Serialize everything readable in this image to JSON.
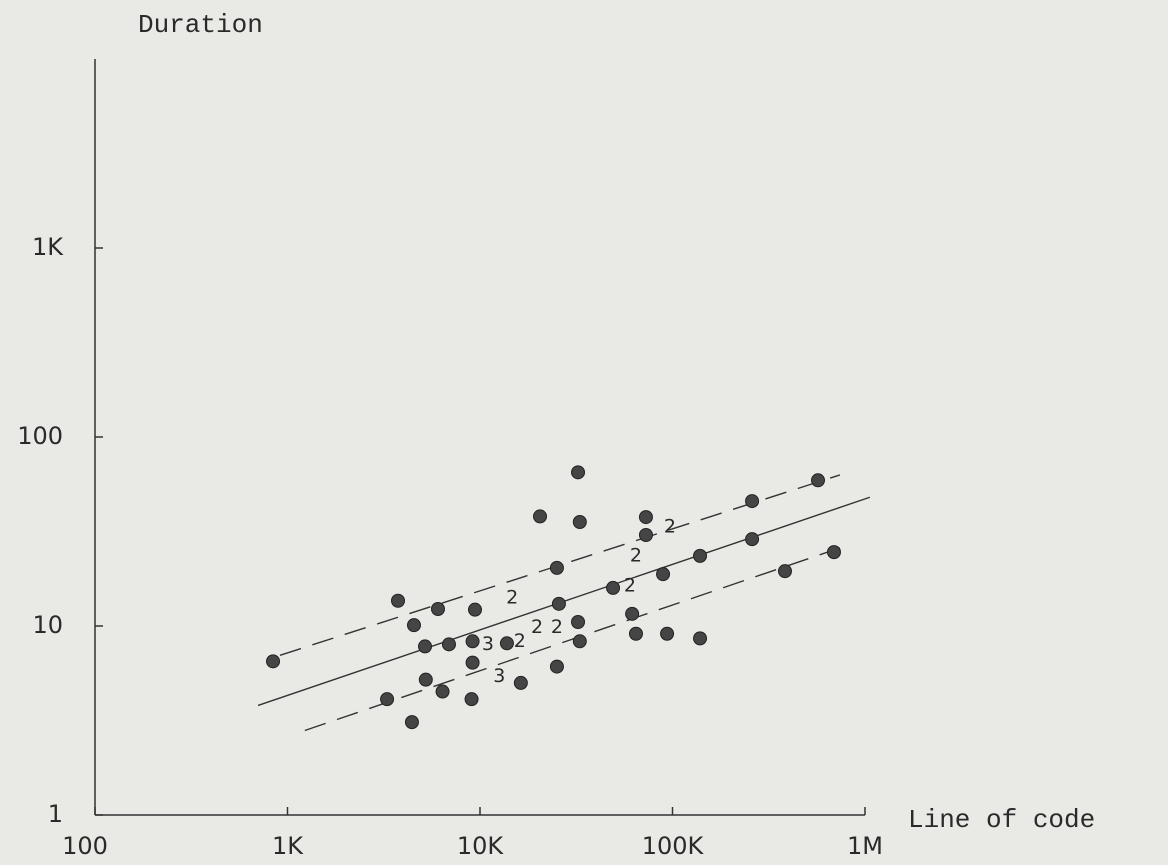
{
  "chart_data": {
    "type": "scatter",
    "y_label": "Duration",
    "x_label": "Line of code",
    "log_x": true,
    "log_y": true,
    "xlim": [
      100,
      1000000
    ],
    "ylim": [
      1,
      10000
    ],
    "xticks": [
      100,
      {
        "value": 1000,
        "label": "1K"
      },
      {
        "value": 10000,
        "label": "10K"
      },
      {
        "value": 100000,
        "label": "100K"
      },
      {
        "value": 1000000,
        "label": "1M"
      }
    ],
    "yticks": [
      1,
      10,
      100,
      {
        "value": 1000,
        "label": "1K"
      }
    ],
    "color": "#454545",
    "x": [
      841,
      3750,
      4540,
      5180,
      5230,
      6050,
      6900,
      6390,
      3290,
      4430,
      9420,
      9150,
      9150,
      9040,
      13800,
      16300,
      20500,
      25100,
      25700,
      25100,
      32300,
      33000,
      32300,
      33000,
      49100,
      61700,
      64600,
      72800,
      72800,
      89300,
      93700,
      139000,
      139000,
      259000,
      259000,
      384000,
      570000,
      690000
    ],
    "y": [
      6.5,
      13.6,
      10.1,
      7.8,
      5.2,
      12.3,
      8.0,
      4.5,
      4.1,
      3.1,
      12.2,
      8.3,
      6.4,
      4.1,
      8.1,
      5.0,
      38,
      20.3,
      13.1,
      6.1,
      65,
      35.5,
      10.5,
      8.3,
      15.9,
      11.6,
      9.1,
      37.7,
      30.3,
      18.8,
      9.1,
      23.5,
      8.6,
      28.8,
      45.8,
      19.5,
      59,
      24.6
    ],
    "annotations": [
      {
        "text": "2",
        "x": 97000,
        "y": 33.4
      },
      {
        "text": "2",
        "x": 64600,
        "y": 23.5
      },
      {
        "text": "2",
        "x": 60100,
        "y": 16.3
      },
      {
        "text": "2",
        "x": 14700,
        "y": 14.1
      },
      {
        "text": "3",
        "x": 11000,
        "y": 8.0
      },
      {
        "text": "2",
        "x": 16100,
        "y": 8.3
      },
      {
        "text": "2",
        "x": 19800,
        "y": 9.8
      },
      {
        "text": "2",
        "x": 25100,
        "y": 9.8
      },
      {
        "text": "3",
        "x": 12600,
        "y": 5.4
      }
    ],
    "fit_lines": [
      {
        "style": "solid",
        "x": [
          703,
          1060000
        ],
        "y": [
          3.8,
          48
        ]
      },
      {
        "style": "dashed",
        "x": [
          914,
          741000
        ],
        "y": [
          7.0,
          63
        ]
      },
      {
        "style": "dashed",
        "x": [
          1230,
          741000
        ],
        "y": [
          2.8,
          25.9
        ]
      }
    ]
  }
}
